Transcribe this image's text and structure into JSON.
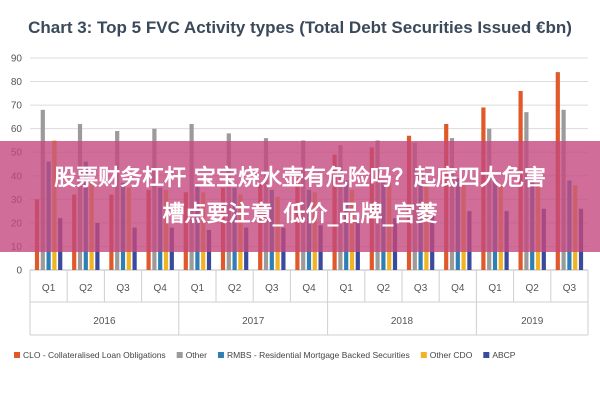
{
  "chart_data": {
    "type": "bar",
    "title": "Chart 3: Top 5 FVC Activity types (Total Debt Securities Issued €bn)",
    "xlabel": "",
    "ylabel": "",
    "ylim": [
      0,
      90
    ],
    "yticks": [
      0,
      10,
      20,
      30,
      40,
      50,
      60,
      70,
      80,
      90
    ],
    "grid": true,
    "legend_position": "bottom",
    "categories": [
      "Q1",
      "Q2",
      "Q3",
      "Q4",
      "Q1",
      "Q2",
      "Q3",
      "Q4",
      "Q1",
      "Q2",
      "Q3",
      "Q4",
      "Q1",
      "Q2",
      "Q3"
    ],
    "groups": [
      {
        "label": "2016",
        "count": 4
      },
      {
        "label": "2017",
        "count": 4
      },
      {
        "label": "2018",
        "count": 4
      },
      {
        "label": "2019",
        "count": 3
      }
    ],
    "series": [
      {
        "name": "CLO - Collateralised Loan Obligations",
        "color": "#e0592a",
        "values": [
          30,
          32,
          32,
          34,
          33,
          35,
          37,
          39,
          49,
          52,
          57,
          62,
          69,
          76,
          84
        ]
      },
      {
        "name": "Other",
        "color": "#9b9b9b",
        "values": [
          68,
          62,
          59,
          60,
          62,
          58,
          56,
          55,
          53,
          55,
          54,
          56,
          60,
          67,
          68
        ]
      },
      {
        "name": "RMBS - Residential Mortgage Backed Securities",
        "color": "#2f7fb5",
        "values": [
          46,
          46,
          37,
          35,
          36,
          35,
          34,
          34,
          38,
          38,
          42,
          39,
          38,
          38,
          38
        ]
      },
      {
        "name": "Other CDO",
        "color": "#f0b323",
        "values": [
          55,
          39,
          35,
          34,
          33,
          32,
          31,
          33,
          34,
          37,
          36,
          36,
          36,
          36,
          36
        ]
      },
      {
        "name": "ABCP",
        "color": "#3a4a9c",
        "values": [
          22,
          20,
          18,
          18,
          17,
          18,
          18,
          19,
          22,
          22,
          24,
          25,
          25,
          26,
          26
        ]
      }
    ]
  },
  "overlay": {
    "line1": "股票财务杠杆 宝宝烧水壶有危险吗？起底四大危害",
    "line2": "槽点要注意_低价_品牌_宫菱"
  }
}
